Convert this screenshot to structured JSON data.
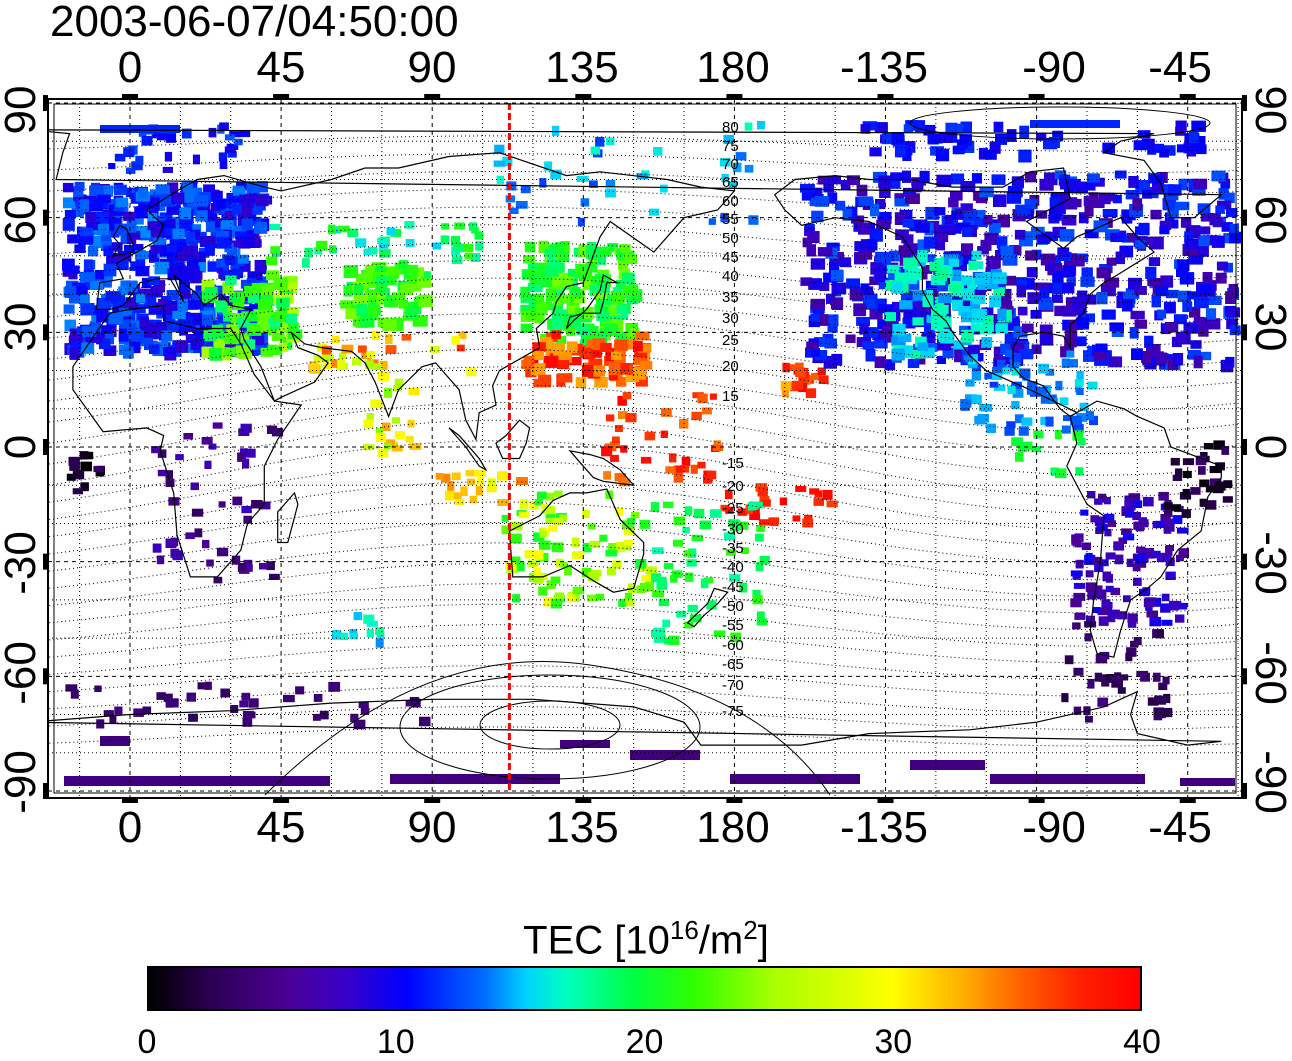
{
  "timestamp": "2003-06-07/04:50:00",
  "map": {
    "type": "tec-world-map",
    "x_ticks": [
      "0",
      "45",
      "90",
      "135",
      "180",
      "-135",
      "-90",
      "-45"
    ],
    "y_ticks": [
      "90",
      "60",
      "30",
      "0",
      "-30",
      "-60",
      "-90"
    ],
    "subsolar_longitude": 113,
    "subsolar_line_color": "#ff0000",
    "north_contour_labels": [
      "80",
      "75",
      "70",
      "65",
      "60",
      "55",
      "50",
      "45",
      "40",
      "35",
      "30",
      "25",
      "20",
      "15"
    ],
    "south_contour_labels": [
      "-15",
      "-20",
      "-25",
      "-30",
      "-35",
      "-40",
      "-45",
      "-50",
      "-55",
      "-60",
      "-65",
      "-70",
      "-75"
    ]
  },
  "colorbar": {
    "title_prefix": "TEC  [10",
    "title_exp1": "16",
    "title_mid": "/m",
    "title_exp2": "2",
    "title_suffix": "]",
    "ticks": [
      "0",
      "10",
      "20",
      "30",
      "40"
    ],
    "min": 0,
    "max": 40
  }
}
